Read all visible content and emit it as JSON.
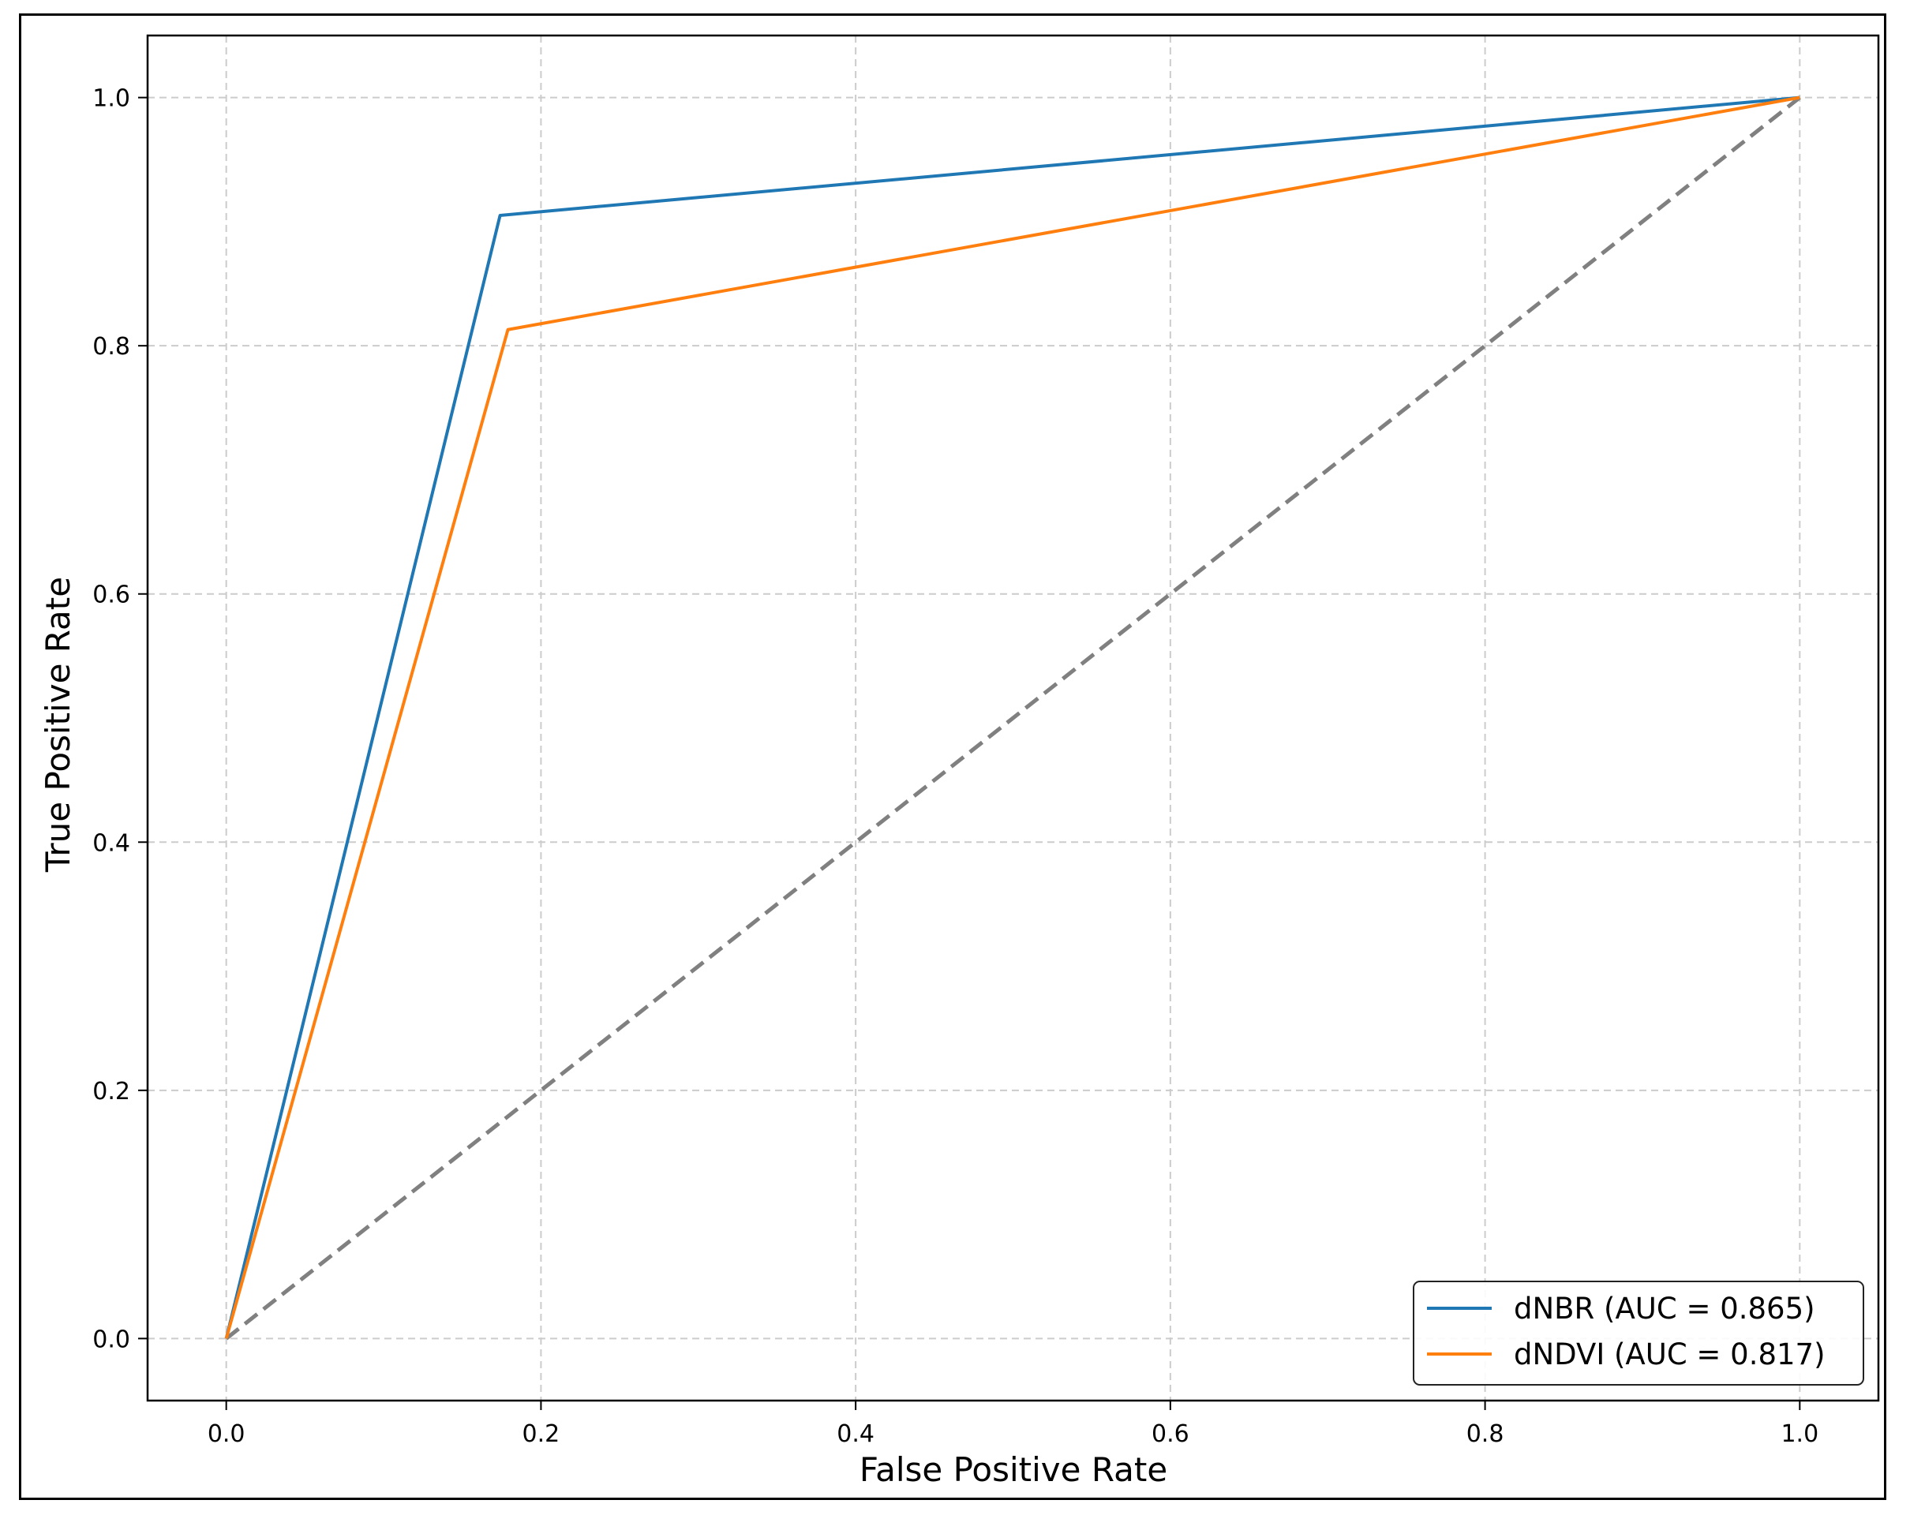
{
  "chart_data": {
    "type": "line",
    "xlabel": "False Positive Rate",
    "ylabel": "True Positive Rate",
    "xlim": [
      -0.05,
      1.05
    ],
    "ylim": [
      -0.05,
      1.05
    ],
    "xticks": [
      0.0,
      0.2,
      0.4,
      0.6,
      0.8,
      1.0
    ],
    "yticks": [
      0.0,
      0.2,
      0.4,
      0.6,
      0.8,
      1.0
    ],
    "xtick_labels": [
      "0.0",
      "0.2",
      "0.4",
      "0.6",
      "0.8",
      "1.0"
    ],
    "ytick_labels": [
      "0.0",
      "0.2",
      "0.4",
      "0.6",
      "0.8",
      "1.0"
    ],
    "grid": true,
    "legend_position": "bottom-right",
    "series": [
      {
        "name": "dNBR (AUC = 0.865)",
        "color": "#1f77b4",
        "x": [
          0.0,
          0.174,
          1.0
        ],
        "y": [
          0.0,
          0.905,
          1.0
        ]
      },
      {
        "name": "dNDVI (AUC = 0.817)",
        "color": "#ff7f0e",
        "x": [
          0.0,
          0.179,
          1.0
        ],
        "y": [
          0.0,
          0.813,
          1.0
        ]
      }
    ],
    "reference_line": {
      "x": [
        0.0,
        1.0
      ],
      "y": [
        0.0,
        1.0
      ],
      "color": "#808080",
      "style": "dashed"
    }
  }
}
